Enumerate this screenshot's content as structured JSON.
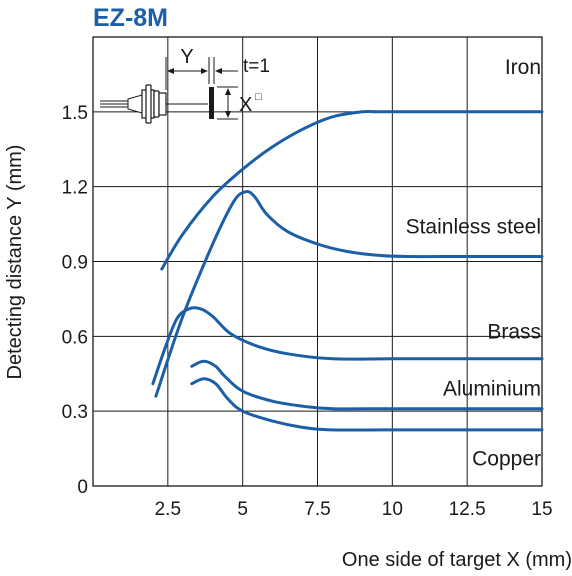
{
  "chart_data": {
    "type": "line",
    "title": "EZ-8M",
    "xlabel": "One side of target X (mm)",
    "ylabel": "Detecting distance Y (mm)",
    "xlim": [
      0,
      15
    ],
    "ylim": [
      0,
      1.8
    ],
    "x_ticks": [
      2.5,
      5,
      7.5,
      10,
      12.5,
      15
    ],
    "x_tick_labels": [
      "2.5",
      "5",
      "7.5",
      "10",
      "12.5",
      "15"
    ],
    "y_ticks": [
      0,
      0.3,
      0.6,
      0.9,
      1.2,
      1.5
    ],
    "y_tick_labels": [
      "0",
      "0.3",
      "0.6",
      "0.9",
      "1.2",
      "1.5"
    ],
    "grid": true,
    "line_color": "#1a5fa8",
    "title_color": "#1a5fa8",
    "series": [
      {
        "name": "Iron",
        "x": [
          2.3,
          3.0,
          4.0,
          5.0,
          6.0,
          7.0,
          8.0,
          9.0,
          9.5,
          11,
          12.5,
          15
        ],
        "y": [
          0.87,
          1.01,
          1.16,
          1.27,
          1.36,
          1.43,
          1.48,
          1.5,
          1.5,
          1.5,
          1.5,
          1.5
        ]
      },
      {
        "name": "Stainless steel",
        "x": [
          2.1,
          3.0,
          4.0,
          4.7,
          5.1,
          5.4,
          5.8,
          6.5,
          7.5,
          8.5,
          9.5,
          10.5,
          12.5,
          15
        ],
        "y": [
          0.36,
          0.68,
          0.97,
          1.14,
          1.18,
          1.16,
          1.09,
          1.02,
          0.97,
          0.94,
          0.925,
          0.92,
          0.92,
          0.92
        ]
      },
      {
        "name": "Brass",
        "x": [
          2.0,
          2.4,
          2.8,
          3.2,
          3.6,
          4.0,
          4.6,
          5.5,
          6.5,
          8.0,
          10.0,
          12.5,
          15
        ],
        "y": [
          0.41,
          0.55,
          0.67,
          0.71,
          0.71,
          0.68,
          0.61,
          0.56,
          0.53,
          0.51,
          0.51,
          0.51,
          0.51
        ]
      },
      {
        "name": "Aluminium",
        "x": [
          3.3,
          3.7,
          4.1,
          4.4,
          5.0,
          6.0,
          7.0,
          8.0,
          10.0,
          12.5,
          15
        ],
        "y": [
          0.48,
          0.5,
          0.48,
          0.44,
          0.38,
          0.34,
          0.32,
          0.31,
          0.31,
          0.31,
          0.31
        ]
      },
      {
        "name": "Copper",
        "x": [
          3.3,
          3.7,
          4.1,
          4.5,
          5.0,
          6.0,
          7.0,
          8.0,
          10.0,
          12.5,
          15
        ],
        "y": [
          0.41,
          0.43,
          0.41,
          0.35,
          0.3,
          0.26,
          0.235,
          0.225,
          0.225,
          0.225,
          0.225
        ]
      }
    ],
    "inset": {
      "dimension_y": "Y",
      "thickness": "t=1",
      "dimension_x": "X",
      "square_symbol": "□"
    }
  }
}
